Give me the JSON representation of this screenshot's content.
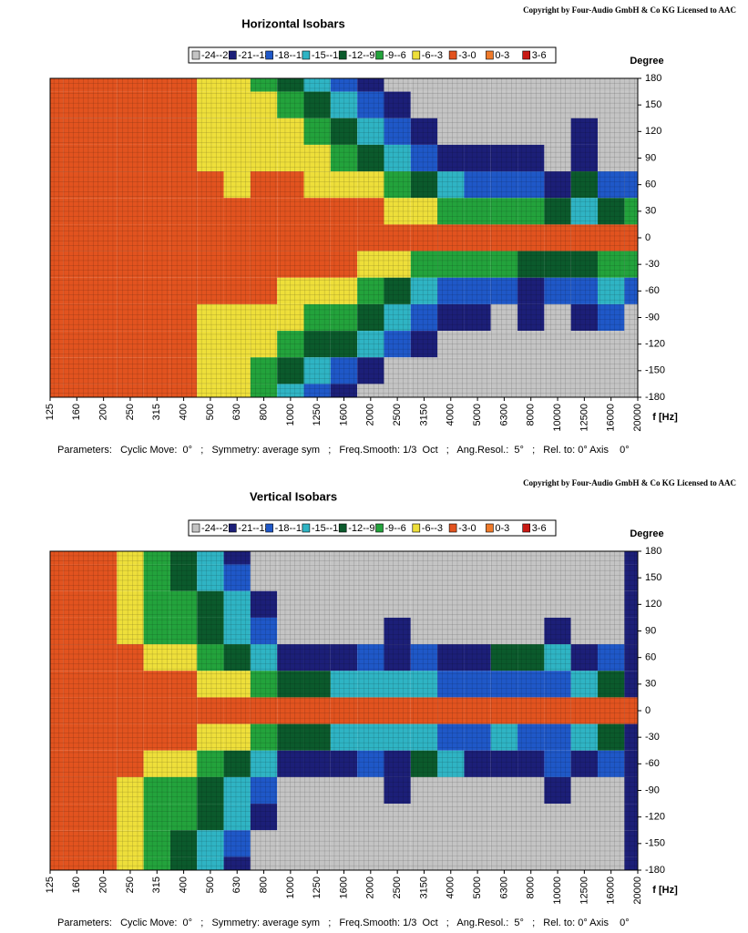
{
  "chart_data": [
    {
      "type": "heatmap",
      "copyright": "Copyright by Four-Audio GmbH & Co KG   Licensed to AAC",
      "title": "Horizontal Isobars",
      "levels": [
        {
          "label": "-24--21",
          "color": "#c4c4c4",
          "range": [
            -24,
            -21
          ]
        },
        {
          "label": "-21--18",
          "color": "#1c1f78",
          "range": [
            -21,
            -18
          ]
        },
        {
          "label": "-18--15",
          "color": "#1f58c8",
          "range": [
            -18,
            -15
          ]
        },
        {
          "label": "-15--12",
          "color": "#2fb4c4",
          "range": [
            -15,
            -12
          ]
        },
        {
          "label": "-12--9",
          "color": "#0b5a2c",
          "range": [
            -12,
            -9
          ]
        },
        {
          "label": "-9--6",
          "color": "#23a33c",
          "range": [
            -9,
            -6
          ]
        },
        {
          "label": "-6--3",
          "color": "#eedf3a",
          "range": [
            -6,
            -3
          ]
        },
        {
          "label": "-3-0",
          "color": "#e2531f",
          "range": [
            -3,
            0
          ]
        },
        {
          "label": "0-3",
          "color": "#ef7a2a",
          "range": [
            0,
            3
          ]
        },
        {
          "label": "3-6",
          "color": "#c81a14",
          "range": [
            3,
            6
          ]
        }
      ],
      "categories": [
        "125",
        "160",
        "200",
        "250",
        "315",
        "400",
        "500",
        "630",
        "800",
        "1000",
        "1250",
        "1600",
        "2000",
        "2500",
        "3150",
        "4000",
        "5000",
        "6300",
        "8000",
        "10000",
        "12500",
        "16000",
        "20000"
      ],
      "y": [
        180,
        150,
        120,
        90,
        60,
        30,
        0,
        -30,
        -60,
        -90,
        -120,
        -150,
        -180
      ],
      "z": [
        [
          -1,
          -1,
          -1,
          -1,
          -1,
          -1,
          -4,
          -4,
          -7,
          -10,
          -13,
          -16,
          -19,
          -22,
          -22,
          -22,
          -22,
          -22,
          -22,
          -22,
          -22,
          -22,
          -22
        ],
        [
          -1,
          -1,
          -1,
          -1,
          -1,
          -1,
          -4,
          -4,
          -4,
          -7,
          -10,
          -13,
          -16,
          -19,
          -22,
          -22,
          -22,
          -22,
          -22,
          -22,
          -22,
          -22,
          -22
        ],
        [
          -1,
          -1,
          -1,
          -1,
          -1,
          -1,
          -4,
          -4,
          -4,
          -4,
          -7,
          -10,
          -13,
          -16,
          -19,
          -22,
          -22,
          -22,
          -22,
          -22,
          -19,
          -22,
          -22
        ],
        [
          -1,
          -1,
          -1,
          -1,
          -1,
          -1,
          -4,
          -4,
          -4,
          -4,
          -4,
          -7,
          -10,
          -13,
          -16,
          -19,
          -19,
          -19,
          -19,
          -22,
          -19,
          -22,
          -22
        ],
        [
          -1,
          -1,
          -1,
          -1,
          -1,
          -1,
          -1,
          -4,
          -1,
          -1,
          -4,
          -4,
          -4,
          -7,
          -10,
          -13,
          -16,
          -16,
          -16,
          -19,
          -10,
          -16,
          -16
        ],
        [
          -1,
          -1,
          -1,
          -1,
          -1,
          -1,
          -1,
          -1,
          -1,
          -1,
          -1,
          -1,
          -1,
          -4,
          -4,
          -7,
          -7,
          -7,
          -7,
          -10,
          -13,
          -10,
          -7
        ],
        [
          -1,
          -1,
          -1,
          -1,
          -1,
          -1,
          -1,
          -1,
          -1,
          -1,
          -1,
          -1,
          -1,
          -1,
          -1,
          -1,
          -1,
          -1,
          -1,
          -1,
          -1,
          -1,
          -1
        ],
        [
          -1,
          -1,
          -1,
          -1,
          -1,
          -1,
          -1,
          -1,
          -1,
          -1,
          -1,
          -1,
          -4,
          -4,
          -7,
          -7,
          -7,
          -7,
          -10,
          -10,
          -10,
          -7,
          -7
        ],
        [
          -1,
          -1,
          -1,
          -1,
          -1,
          -1,
          -1,
          -1,
          -1,
          -4,
          -4,
          -4,
          -7,
          -10,
          -13,
          -16,
          -16,
          -16,
          -19,
          -16,
          -16,
          -13,
          -16
        ],
        [
          -1,
          -1,
          -1,
          -1,
          -1,
          -1,
          -4,
          -4,
          -4,
          -4,
          -7,
          -7,
          -10,
          -13,
          -16,
          -19,
          -19,
          -22,
          -19,
          -22,
          -19,
          -16,
          -22
        ],
        [
          -1,
          -1,
          -1,
          -1,
          -1,
          -1,
          -4,
          -4,
          -4,
          -7,
          -10,
          -10,
          -13,
          -16,
          -19,
          -22,
          -22,
          -22,
          -22,
          -22,
          -22,
          -22,
          -22
        ],
        [
          -1,
          -1,
          -1,
          -1,
          -1,
          -1,
          -4,
          -4,
          -7,
          -10,
          -13,
          -16,
          -19,
          -22,
          -22,
          -22,
          -22,
          -22,
          -22,
          -22,
          -22,
          -22,
          -22
        ],
        [
          -1,
          -1,
          -1,
          -1,
          -1,
          -1,
          -4,
          -4,
          -7,
          -13,
          -16,
          -19,
          -22,
          -22,
          -22,
          -22,
          -22,
          -22,
          -22,
          -22,
          -22,
          -22,
          -22
        ]
      ],
      "ylim": [
        -180,
        180
      ],
      "yticks": [
        180,
        150,
        120,
        90,
        60,
        30,
        0,
        -30,
        -60,
        -90,
        -120,
        -150,
        -180
      ],
      "y_label": "Degree",
      "x_label": "f [Hz]",
      "parameters": "Parameters:   Cyclic Move:  0°   ;   Symmetry: average sym   ;   Freq.Smooth: 1/3  Oct   ;   Ang.Resol.:  5°   ;   Rel. to: 0° Axis    0°"
    },
    {
      "type": "heatmap",
      "copyright": "Copyright by Four-Audio GmbH & Co KG   Licensed to AAC",
      "title": "Vertical Isobars",
      "levels": [
        {
          "label": "-24--21",
          "color": "#c4c4c4",
          "range": [
            -24,
            -21
          ]
        },
        {
          "label": "-21--18",
          "color": "#1c1f78",
          "range": [
            -21,
            -18
          ]
        },
        {
          "label": "-18--15",
          "color": "#1f58c8",
          "range": [
            -18,
            -15
          ]
        },
        {
          "label": "-15--12",
          "color": "#2fb4c4",
          "range": [
            -15,
            -12
          ]
        },
        {
          "label": "-12--9",
          "color": "#0b5a2c",
          "range": [
            -12,
            -9
          ]
        },
        {
          "label": "-9--6",
          "color": "#23a33c",
          "range": [
            -9,
            -6
          ]
        },
        {
          "label": "-6--3",
          "color": "#eedf3a",
          "range": [
            -6,
            -3
          ]
        },
        {
          "label": "-3-0",
          "color": "#e2531f",
          "range": [
            -3,
            0
          ]
        },
        {
          "label": "0-3",
          "color": "#ef7a2a",
          "range": [
            0,
            3
          ]
        },
        {
          "label": "3-6",
          "color": "#c81a14",
          "range": [
            3,
            6
          ]
        }
      ],
      "categories": [
        "125",
        "160",
        "200",
        "250",
        "315",
        "400",
        "500",
        "630",
        "800",
        "1000",
        "1250",
        "1600",
        "2000",
        "2500",
        "3150",
        "4000",
        "5000",
        "6300",
        "8000",
        "10000",
        "12500",
        "16000",
        "20000"
      ],
      "y": [
        180,
        150,
        120,
        90,
        60,
        30,
        0,
        -30,
        -60,
        -90,
        -120,
        -150,
        -180
      ],
      "z": [
        [
          -1,
          -1,
          -1,
          -4,
          -7,
          -10,
          -13,
          -19,
          -22,
          -22,
          -22,
          -22,
          -22,
          -22,
          -22,
          -22,
          -22,
          -22,
          -22,
          -22,
          -22,
          -22,
          -19
        ],
        [
          -1,
          -1,
          -1,
          -4,
          -7,
          -10,
          -13,
          -16,
          -22,
          -22,
          -22,
          -22,
          -22,
          -22,
          -22,
          -22,
          -22,
          -22,
          -22,
          -22,
          -22,
          -22,
          -19
        ],
        [
          -1,
          -1,
          -1,
          -4,
          -7,
          -7,
          -10,
          -13,
          -19,
          -22,
          -22,
          -22,
          -22,
          -22,
          -22,
          -22,
          -22,
          -22,
          -22,
          -22,
          -22,
          -22,
          -19
        ],
        [
          -1,
          -1,
          -1,
          -4,
          -7,
          -7,
          -10,
          -13,
          -16,
          -22,
          -22,
          -22,
          -22,
          -19,
          -22,
          -22,
          -22,
          -22,
          -22,
          -19,
          -22,
          -22,
          -19
        ],
        [
          -1,
          -1,
          -1,
          -1,
          -4,
          -4,
          -7,
          -10,
          -13,
          -19,
          -19,
          -19,
          -16,
          -19,
          -16,
          -19,
          -19,
          -10,
          -10,
          -13,
          -19,
          -16,
          -19
        ],
        [
          -1,
          -1,
          -1,
          -1,
          -1,
          -1,
          -4,
          -4,
          -7,
          -10,
          -10,
          -13,
          -13,
          -13,
          -13,
          -16,
          -16,
          -16,
          -16,
          -16,
          -13,
          -10,
          -19
        ],
        [
          -1,
          -1,
          -1,
          -1,
          -1,
          -1,
          -1,
          -1,
          -1,
          -1,
          -1,
          -1,
          -1,
          -1,
          -1,
          -1,
          -1,
          -1,
          -1,
          -1,
          -1,
          -1,
          -1
        ],
        [
          -1,
          -1,
          -1,
          -1,
          -1,
          -1,
          -4,
          -4,
          -7,
          -10,
          -10,
          -13,
          -13,
          -13,
          -13,
          -16,
          -16,
          -13,
          -16,
          -16,
          -13,
          -10,
          -19
        ],
        [
          -1,
          -1,
          -1,
          -1,
          -4,
          -4,
          -7,
          -10,
          -13,
          -19,
          -19,
          -19,
          -16,
          -19,
          -10,
          -13,
          -19,
          -19,
          -19,
          -16,
          -19,
          -16,
          -19
        ],
        [
          -1,
          -1,
          -1,
          -4,
          -7,
          -7,
          -10,
          -13,
          -16,
          -22,
          -22,
          -22,
          -22,
          -19,
          -22,
          -22,
          -22,
          -22,
          -22,
          -19,
          -22,
          -22,
          -19
        ],
        [
          -1,
          -1,
          -1,
          -4,
          -7,
          -7,
          -10,
          -13,
          -19,
          -22,
          -22,
          -22,
          -22,
          -22,
          -22,
          -22,
          -22,
          -22,
          -22,
          -22,
          -22,
          -22,
          -19
        ],
        [
          -1,
          -1,
          -1,
          -4,
          -7,
          -10,
          -13,
          -16,
          -22,
          -22,
          -22,
          -22,
          -22,
          -22,
          -22,
          -22,
          -22,
          -22,
          -22,
          -22,
          -22,
          -22,
          -19
        ],
        [
          -1,
          -1,
          -1,
          -4,
          -7,
          -10,
          -13,
          -19,
          -22,
          -22,
          -22,
          -22,
          -22,
          -22,
          -22,
          -22,
          -22,
          -22,
          -22,
          -22,
          -22,
          -22,
          -19
        ]
      ],
      "ylim": [
        -180,
        180
      ],
      "yticks": [
        180,
        150,
        120,
        90,
        60,
        30,
        0,
        -30,
        -60,
        -90,
        -120,
        -150,
        -180
      ],
      "y_label": "Degree",
      "x_label": "f [Hz]",
      "parameters": "Parameters:   Cyclic Move:  0°   ;   Symmetry: average sym   ;   Freq.Smooth: 1/3  Oct   ;   Ang.Resol.:  5°   ;   Rel. to: 0° Axis    0°"
    }
  ]
}
